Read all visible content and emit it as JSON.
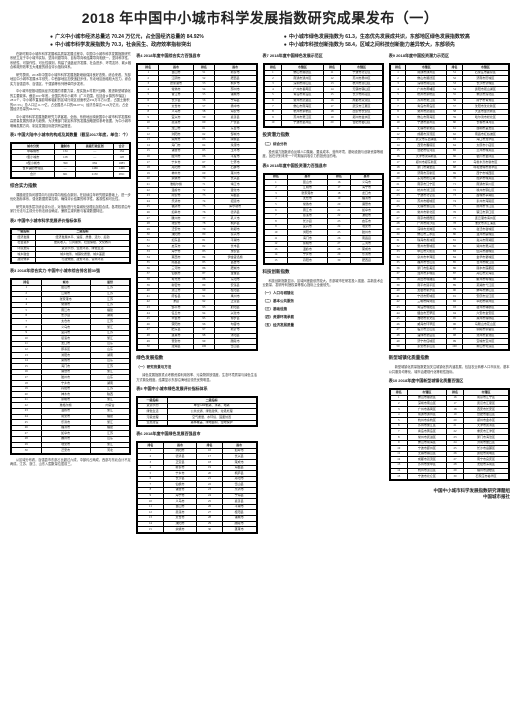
{
  "headline": "2018 年中国中小城市科学发展指数研究成果发布（一）",
  "bullets": {
    "left": [
      "广义中小城市经济总量达 70.24 万亿元，占全国经济总量的 84.92%",
      "中小城市科学发展指数为 70.3，社会民生、政府效率指标突出"
    ],
    "right": [
      "中小城市绿色发展指数为 61.3，生态优先发展成共识，东部地区绿色发展指数较高",
      "中小城市科技创新指数为 58.4，区域之间科技创新能力差异较大，东部领先"
    ]
  },
  "intro": [
    "在新时期中小城市科学发展和高质量发展过程中，中国中小城市科学发展指数研究系统立足于中小城市实际，坚持问题导向、目标导向和结果导向相统一，坚持科学性、系统性、可操作性、可比性原则，构建了涵盖经济发展、社会进步、环境友好、城乡融合和政府效率五大维度的综合评价指标体系。",
    "研究表明，2018年中国中小城市科学发展指数继续保持良好态势。综合来看，东部地区中小城市发展水平领先，中西部地区加快追赶步伐，东北地区面临较大压力。综合实力百强县市、百强区、千强镇等系列榜单同步发布。",
    "中小城市是推动国民经济发展的重要力量，是实施乡村振兴战略、推进新型城镇化的主要载体。截至2017年底，全国共有中小城市（广义范围，包括含乡镇的市辖区）2811个，中小城市直接影响和辐射的区域行政区划面积达934万平方公里，占国土面积的97.3%；总人口达11.77亿，占全国总人口的84.67%；经济总量达70.24万亿元，占全国经济总量的84.92%。",
    "中小城市科学发展指数研究力求客观、全面、系统地反映我国中小城市科学发展和高质量发展的现状与趋势，为决策部门制定科学的发展战略提供参考依据，为中小城市明确发展方向、制定发展目标提供有益借鉴。"
  ],
  "t1": {
    "cap": "表1 中国大陆中小城市的构成及其数量（截至2017年底，单位：个）",
    "head": [
      "城市分类",
      "建制市",
      "县级行政区划",
      "合计"
    ],
    "rows": [
      [
        "中等城市",
        "134",
        "—",
        "134"
      ],
      [
        "Ⅰ型小城市",
        "128",
        "—",
        "128"
      ],
      [
        "Ⅱ型小城市",
        "399",
        "684",
        "1083"
      ],
      [
        "含乡镇的市辖区",
        "—",
        "1466",
        "1466"
      ],
      [
        "合计",
        "661",
        "2150",
        "2811"
      ]
    ]
  },
  "t2": {
    "cap": "表2 中国中小城市科学发展评价指标体系",
    "head": [
      "一级指标",
      "二级指标"
    ],
    "rows": [
      [
        "经济发展",
        "经济发展水平、速度、质量、活力、后劲"
      ],
      [
        "社会进步",
        "居民收入、公共服务、社会保障、文化教育"
      ],
      [
        "环境友好",
        "资源节约、生态环境、绿色生活"
      ],
      [
        "城乡融合",
        "城乡统筹、城镇化质量、城乡差距"
      ],
      [
        "政府效率",
        "行政效能、政务环境、营商环境"
      ]
    ]
  },
  "t3": {
    "cap": "表3 2018年综合实力·中国中小城市综合排名前30强",
    "head": [
      "排名",
      "城市",
      "省份"
    ],
    "rows": [
      [
        "1",
        "昆山市",
        "江苏"
      ],
      [
        "2",
        "江阴市",
        "江苏"
      ],
      [
        "3",
        "张家港市",
        "江苏"
      ],
      [
        "4",
        "常熟市",
        "江苏"
      ],
      [
        "5",
        "晋江市",
        "福建"
      ],
      [
        "6",
        "长沙县",
        "湖南"
      ],
      [
        "7",
        "太仓市",
        "江苏"
      ],
      [
        "8",
        "义乌市",
        "浙江"
      ],
      [
        "9",
        "宜兴市",
        "江苏"
      ],
      [
        "10",
        "慈溪市",
        "浙江"
      ],
      [
        "11",
        "龙口市",
        "山东"
      ],
      [
        "12",
        "即墨区",
        "山东"
      ],
      [
        "13",
        "浏阳市",
        "湖南"
      ],
      [
        "14",
        "荣成市",
        "山东"
      ],
      [
        "15",
        "海门市",
        "江苏"
      ],
      [
        "16",
        "诸暨市",
        "浙江"
      ],
      [
        "17",
        "胶州市",
        "山东"
      ],
      [
        "18",
        "宁乡市",
        "湖南"
      ],
      [
        "19",
        "丹阳市",
        "江苏"
      ],
      [
        "20",
        "神木市",
        "陕西"
      ],
      [
        "21",
        "余姚市",
        "浙江"
      ],
      [
        "22",
        "准格尔旗",
        "内蒙古"
      ],
      [
        "23",
        "温岭市",
        "浙江"
      ],
      [
        "24",
        "南安市",
        "福建"
      ],
      [
        "25",
        "乐清市",
        "浙江"
      ],
      [
        "26",
        "福清市",
        "福建"
      ],
      [
        "27",
        "如皋市",
        "江苏"
      ],
      [
        "28",
        "滕州市",
        "山东"
      ],
      [
        "29",
        "瑞安市",
        "浙江"
      ],
      [
        "30",
        "迁安市",
        "河北"
      ]
    ]
  },
  "t4": {
    "cap": "表4 2018年度中国综合实力百强县市",
    "head": [
      "排名",
      "县市",
      "排名",
      "县市"
    ],
    "rows": [
      [
        "1",
        "昆山市",
        "51",
        "新泰市"
      ],
      [
        "2",
        "江阴市",
        "52",
        "肥西县"
      ],
      [
        "3",
        "张家港市",
        "53",
        "桐乡市"
      ],
      [
        "4",
        "常熟市",
        "54",
        "邳州市"
      ],
      [
        "5",
        "晋江市",
        "55",
        "诸城市"
      ],
      [
        "6",
        "长沙县",
        "56",
        "宁海县"
      ],
      [
        "7",
        "太仓市",
        "57",
        "扬中市"
      ],
      [
        "8",
        "义乌市",
        "58",
        "海安市"
      ],
      [
        "9",
        "宜兴市",
        "59",
        "嘉善县"
      ],
      [
        "10",
        "慈溪市",
        "60",
        "广饶县"
      ],
      [
        "11",
        "龙口市",
        "61",
        "东台市"
      ],
      [
        "12",
        "浏阳市",
        "62",
        "邹城市"
      ],
      [
        "13",
        "荣成市",
        "63",
        "闽侯县"
      ],
      [
        "14",
        "海门市",
        "64",
        "永康市"
      ],
      [
        "15",
        "诸暨市",
        "65",
        "玉环市"
      ],
      [
        "16",
        "胶州市",
        "66",
        "平度市"
      ],
      [
        "17",
        "宁乡市",
        "67",
        "仁怀市"
      ],
      [
        "18",
        "丹阳市",
        "68",
        "石狮市"
      ],
      [
        "19",
        "神木市",
        "69",
        "莱州市"
      ],
      [
        "20",
        "余姚市",
        "70",
        "长兴县"
      ],
      [
        "21",
        "准格尔旗",
        "71",
        "靖江市"
      ],
      [
        "22",
        "温岭市",
        "72",
        "遵化市"
      ],
      [
        "23",
        "南安市",
        "73",
        "海盐县"
      ],
      [
        "24",
        "乐清市",
        "74",
        "招远市"
      ],
      [
        "25",
        "福清市",
        "75",
        "库尔勒市"
      ],
      [
        "26",
        "如皋市",
        "76",
        "德清县"
      ],
      [
        "27",
        "滕州市",
        "77",
        "巩义市"
      ],
      [
        "28",
        "瑞安市",
        "78",
        "桐庐县"
      ],
      [
        "29",
        "迁安市",
        "79",
        "新郑市"
      ],
      [
        "30",
        "溧阳市",
        "80",
        "泰兴市"
      ],
      [
        "31",
        "如东县",
        "81",
        "平湖市"
      ],
      [
        "32",
        "启东市",
        "82",
        "长丰县"
      ],
      [
        "33",
        "海宁市",
        "83",
        "惠安县"
      ],
      [
        "34",
        "莱西市",
        "84",
        "伊金霍洛旗"
      ],
      [
        "35",
        "南昌县",
        "85",
        "昌吉市"
      ],
      [
        "36",
        "三河市",
        "86",
        "肥城市"
      ],
      [
        "37",
        "仙桃市",
        "87",
        "金堂县"
      ],
      [
        "38",
        "寿光市",
        "88",
        "东阳市"
      ],
      [
        "39",
        "新密市",
        "89",
        "安溪县"
      ],
      [
        "40",
        "潜江市",
        "90",
        "桂阳县"
      ],
      [
        "41",
        "府谷县",
        "91",
        "禹州市"
      ],
      [
        "42",
        "沛县",
        "92",
        "正定县"
      ],
      [
        "43",
        "邹平市",
        "93",
        "射阳县"
      ],
      [
        "44",
        "任丘市",
        "94",
        "兴化市"
      ],
      [
        "45",
        "辛集市",
        "95",
        "博罗县"
      ],
      [
        "46",
        "荥阳市",
        "96",
        "句容市"
      ],
      [
        "47",
        "肥东县",
        "97",
        "新沂市"
      ],
      [
        "48",
        "蓬莱市",
        "98",
        "沭阳县"
      ],
      [
        "49",
        "登封市",
        "99",
        "醴陵市"
      ],
      [
        "50",
        "建湖县",
        "100",
        "岱山县"
      ]
    ]
  },
  "t5": {
    "cap": "表5 中国中小城市绿色发展评价指标体系",
    "head": [
      "一级指标",
      "二级指标"
    ],
    "rows": [
      [
        "资源节约",
        "单位GDP能耗、水耗、地耗"
      ],
      [
        "绿色生活",
        "公共交通、绿色建筑、垃圾处理"
      ],
      [
        "污染治理",
        "空气质量、水环境、固废处置"
      ],
      [
        "生态建设",
        "森林覆盖、绿地面积、湿地保护"
      ]
    ]
  },
  "t6": {
    "cap": "表6 2018年度中国绿色发展百强县市",
    "head": [
      "排名",
      "县市",
      "排名",
      "县市"
    ],
    "rows": [
      [
        "1",
        "浏阳市",
        "16",
        "如皋市"
      ],
      [
        "2",
        "德清县",
        "17",
        "长兴县"
      ],
      [
        "3",
        "正定县",
        "18",
        "荣成市"
      ],
      [
        "4",
        "新泰市",
        "19",
        "海盐县"
      ],
      [
        "5",
        "宁乡市",
        "20",
        "桐庐县"
      ],
      [
        "6",
        "长沙县",
        "21",
        "丹阳市"
      ],
      [
        "7",
        "仙桃市",
        "22",
        "岱山县"
      ],
      [
        "8",
        "诸暨市",
        "23",
        "乐清市"
      ],
      [
        "9",
        "海宁市",
        "24",
        "宁海县"
      ],
      [
        "10",
        "义乌市",
        "25",
        "嘉善县"
      ],
      [
        "11",
        "昆山市",
        "26",
        "平湖市"
      ],
      [
        "12",
        "慈溪市",
        "27",
        "桂阳县"
      ],
      [
        "13",
        "太仓市",
        "28",
        "诸城市"
      ],
      [
        "14",
        "溧阳市",
        "29",
        "醴陵市"
      ],
      [
        "15",
        "余姚市",
        "30",
        "蓬莱市"
      ]
    ]
  },
  "t7": {
    "cap": "表7 2018年度中国绿色发展示范区",
    "head": [
      "排名",
      "市辖区",
      "排名",
      "市辖区"
    ],
    "rows": [
      [
        "1",
        "佛山市顺德区",
        "11",
        "宁波市北仑区"
      ],
      [
        "2",
        "南通市通州区",
        "12",
        "苏州市吴中区"
      ],
      [
        "3",
        "深圳市南山区",
        "13",
        "杭州市萧山区"
      ],
      [
        "4",
        "广州市番禺区",
        "14",
        "无锡市锡山区"
      ],
      [
        "5",
        "青岛市黄岛区",
        "15",
        "长沙市雨花区"
      ],
      [
        "6",
        "常州市武进区",
        "16",
        "成都市双流区"
      ],
      [
        "7",
        "佛山市南海区",
        "17",
        "武汉市江夏区"
      ],
      [
        "8",
        "杭州市余杭区",
        "18",
        "西安市长安区"
      ],
      [
        "9",
        "苏州市吴江区",
        "19",
        "郑州市金水区"
      ],
      [
        "10",
        "宁波市鄞州区",
        "20",
        "合肥市蜀山区"
      ]
    ]
  },
  "t8": {
    "cap": "表8 2018年度中国投资潜力百强县市",
    "head": [
      "排名",
      "县市",
      "排名",
      "县市"
    ],
    "rows": [
      [
        "1",
        "昆山市",
        "16",
        "义乌市"
      ],
      [
        "2",
        "江阴市",
        "17",
        "海宁市"
      ],
      [
        "3",
        "张家港市",
        "18",
        "龙口市"
      ],
      [
        "4",
        "太仓市",
        "19",
        "福清市"
      ],
      [
        "5",
        "常熟市",
        "20",
        "诸暨市"
      ],
      [
        "6",
        "晋江市",
        "21",
        "如皋市"
      ],
      [
        "7",
        "慈溪市",
        "22",
        "溧阳市"
      ],
      [
        "8",
        "长沙县",
        "23",
        "启东市"
      ],
      [
        "9",
        "宜兴市",
        "24",
        "瑞安市"
      ],
      [
        "10",
        "浏阳市",
        "25",
        "胶州市"
      ],
      [
        "11",
        "海门市",
        "26",
        "南昌县"
      ],
      [
        "12",
        "余姚市",
        "27",
        "三河市"
      ],
      [
        "13",
        "温岭市",
        "28",
        "荣成市"
      ],
      [
        "14",
        "宁乡市",
        "29",
        "乐清市"
      ],
      [
        "15",
        "丹阳市",
        "30",
        "肥西县"
      ]
    ]
  },
  "t9": {
    "cap": "表9 2018年度中国投资潜力示范区",
    "head": [
      "排名",
      "市辖区",
      "排名",
      "市辖区"
    ],
    "rows": [
      [
        "1",
        "南通市通州区",
        "51",
        "石家庄市鹿泉区"
      ],
      [
        "2",
        "佛山市顺德区",
        "52",
        "济南市历城区"
      ],
      [
        "3",
        "深圳市南山区",
        "53",
        "长沙市望城区"
      ],
      [
        "4",
        "广州市黄埔区",
        "54",
        "贵阳市观山湖区"
      ],
      [
        "5",
        "杭州市余杭区",
        "55",
        "重庆市渝北区"
      ],
      [
        "6",
        "苏州市吴江区",
        "56",
        "南宁市青秀区"
      ],
      [
        "7",
        "青岛市黄岛区",
        "57",
        "沈阳市沈北新区"
      ],
      [
        "8",
        "常州市武进区",
        "58",
        "大连市金普新区"
      ],
      [
        "9",
        "佛山市南海区",
        "59",
        "哈尔滨市松北区"
      ],
      [
        "10",
        "宁波市鄞州区",
        "60",
        "长春市净月区"
      ],
      [
        "11",
        "无锡市新吴区",
        "61",
        "昆明市呈贡区"
      ],
      [
        "12",
        "成都市双流区",
        "62",
        "南昌市红谷滩区"
      ],
      [
        "13",
        "武汉市东西湖区",
        "63",
        "海口市龙华区"
      ],
      [
        "14",
        "西安市雁塔区",
        "64",
        "太原市小店区"
      ],
      [
        "15",
        "合肥市包河区",
        "65",
        "兰州市城关区"
      ],
      [
        "16",
        "天津市滨海新区",
        "66",
        "银川市金凤区"
      ],
      [
        "17",
        "郑州市郑东新区",
        "67",
        "乌鲁木齐市新市区"
      ],
      [
        "18",
        "厦门市湖里区",
        "68",
        "呼和浩特市赛罕区"
      ],
      [
        "19",
        "济南市高新区",
        "69",
        "西宁市城西区"
      ],
      [
        "20",
        "东莞市松山湖",
        "70",
        "拉萨市城关区"
      ],
      [
        "21",
        "南京市江宁区",
        "71",
        "南通市崇川区"
      ],
      [
        "22",
        "杭州市滨江区",
        "72",
        "徐州市铜山区"
      ],
      [
        "23",
        "宁波市北仑区",
        "73",
        "盐城市亭湖区"
      ],
      [
        "24",
        "苏州市相城区",
        "74",
        "泰州市海陵区"
      ],
      [
        "25",
        "无锡市惠山区",
        "75",
        "扬州市邗江区"
      ],
      [
        "26",
        "常州市新北区",
        "76",
        "镇江市京口区"
      ],
      [
        "27",
        "南京市栖霞区",
        "77",
        "连云港市海州区"
      ],
      [
        "28",
        "广州市南沙区",
        "78",
        "淮安市清江浦区"
      ],
      [
        "29",
        "深圳市龙岗区",
        "79",
        "宿迁市宿城区"
      ],
      [
        "30",
        "佛山市三水区",
        "80",
        "温州市鹿城区"
      ],
      [
        "31",
        "珠海市香洲区",
        "81",
        "嘉兴市南湖区"
      ],
      [
        "32",
        "惠州市惠城区",
        "82",
        "湖州市吴兴区"
      ],
      [
        "33",
        "中山市火炬区",
        "83",
        "绍兴市越城区"
      ],
      [
        "34",
        "泉州市丰泽区",
        "84",
        "金华市婺城区"
      ],
      [
        "35",
        "福州市仓山区",
        "85",
        "台州市椒江区"
      ],
      [
        "36",
        "厦门市集美区",
        "86",
        "丽水市莲都区"
      ],
      [
        "37",
        "漳州市芗城区",
        "87",
        "舟山市定海区"
      ],
      [
        "38",
        "莆田市城厢区",
        "88",
        "衢州市柯城区"
      ],
      [
        "39",
        "南平市延平区",
        "89",
        "芜湖市弋江区"
      ],
      [
        "40",
        "龙岩市新罗区",
        "90",
        "蚌埠市蚌山区"
      ],
      [
        "41",
        "宁德市蕉城区",
        "91",
        "安庆市迎江区"
      ],
      [
        "42",
        "三明市梅列区",
        "92",
        "阜阳市颍州区"
      ],
      [
        "43",
        "青岛市城阳区",
        "93",
        "宿州市埇桥区"
      ],
      [
        "44",
        "烟台市芝罘区",
        "94",
        "六安市金安区"
      ],
      [
        "45",
        "潍坊市奎文区",
        "95",
        "滁州市琅琊区"
      ],
      [
        "46",
        "威海市环翠区",
        "96",
        "马鞍山市花山区"
      ],
      [
        "47",
        "临沂市兰山区",
        "97",
        "铜陵市铜官区"
      ],
      [
        "48",
        "淄博市张店区",
        "98",
        "池州市贵池区"
      ],
      [
        "49",
        "济宁市任城区",
        "99",
        "宣城市宣州区"
      ],
      [
        "50",
        "泰安市泰山区",
        "100",
        "黄山市屯溪区"
      ]
    ]
  },
  "t10": {
    "cap": "表10 2018年度中国新型城镇化质量百强区",
    "head": [
      "排名",
      "市辖区",
      "排名",
      "市辖区"
    ],
    "rows": [
      [
        "1",
        "佛山市顺德区",
        "16",
        "南京市江宁区"
      ],
      [
        "2",
        "深圳市南山区",
        "17",
        "武汉市江夏区"
      ],
      [
        "3",
        "广州市番禺区",
        "18",
        "西安市长安区"
      ],
      [
        "4",
        "南通市通州区",
        "19",
        "合肥市蜀山区"
      ],
      [
        "5",
        "杭州市余杭区",
        "20",
        "郑州市金水区"
      ],
      [
        "6",
        "苏州市吴江区",
        "21",
        "天津市武清区"
      ],
      [
        "7",
        "青岛市黄岛区",
        "22",
        "重庆市江津区"
      ],
      [
        "8",
        "常州市武进区",
        "23",
        "厦门市海沧区"
      ],
      [
        "9",
        "佛山市南海区",
        "24",
        "济南市章丘区"
      ],
      [
        "10",
        "宁波市鄞州区",
        "25",
        "长沙市岳麓区"
      ],
      [
        "11",
        "无锡市锡山区",
        "26",
        "贵阳市南明区"
      ],
      [
        "12",
        "成都市双流区",
        "27",
        "南宁市良庆区"
      ],
      [
        "13",
        "苏州市吴中区",
        "28",
        "沈阳市浑南区"
      ],
      [
        "14",
        "杭州市萧山区",
        "29",
        "福州市鼓楼区"
      ],
      [
        "15",
        "宁波市北仑区",
        "30",
        "石家庄市裕华区"
      ]
    ]
  },
  "sect": [
    "综合实力指数",
    "绿色发展指数",
    "投资潜力指数",
    "科技创新指数",
    "新型城镇化质量指数"
  ],
  "sub": [
    "（一）研究背景与方法",
    "（二）综合分析",
    "（三）专项分析",
    "（四）分区域比较",
    "（一）人口与城镇化",
    "（二）基本公共服务",
    "（三）基础设施",
    "（四）资源环境承载",
    "（五）经济发展质量"
  ],
  "body": [
    "课题组坚持问题导向与目标导向相结合原则，在延续往年研究框架基础上，进一步优化指标体系，强化数据质量控制，确保评价结果的科学性、客观性和可比性。",
    "研究采用多层次综合评价法，对指标进行无量纲化处理后加权合成。各项权重由专家打分法与主成分分析法综合确定，兼顾主观判断与客观数据特征。",
    "从区域分布看，百强县市东部占比超过六成，中部约占两成，西部与东北合计不足两成。江苏、浙江、山东入围数量位居前三。",
    "绿色发展指数重点考察资源利用效率、污染物排放强度、生态环境质量与绿色生活方式普及程度。结果显示东部沿海地区领先优势明显。",
    "投资潜力指数综合反映人口集聚、要素成本、营商环境、基础设施与创新资源等维度，旨在识别未来一个时期最具吸引力的投资目的地。",
    "科技创新指数显示，区域间差距依然较大。东部城市在研发投入强度、高新技术企业数量、发明专利授权量等核心指标上全面领先。",
    "新型城镇化质量指数更加关注城镇化的内涵发展，包括农业转移人口市民化、基本公共服务均等化、城市治理现代化等软性指标。"
  ],
  "foot": [
    "中国中小城市科学发展指数研究课题组",
    "中国城市报社"
  ]
}
